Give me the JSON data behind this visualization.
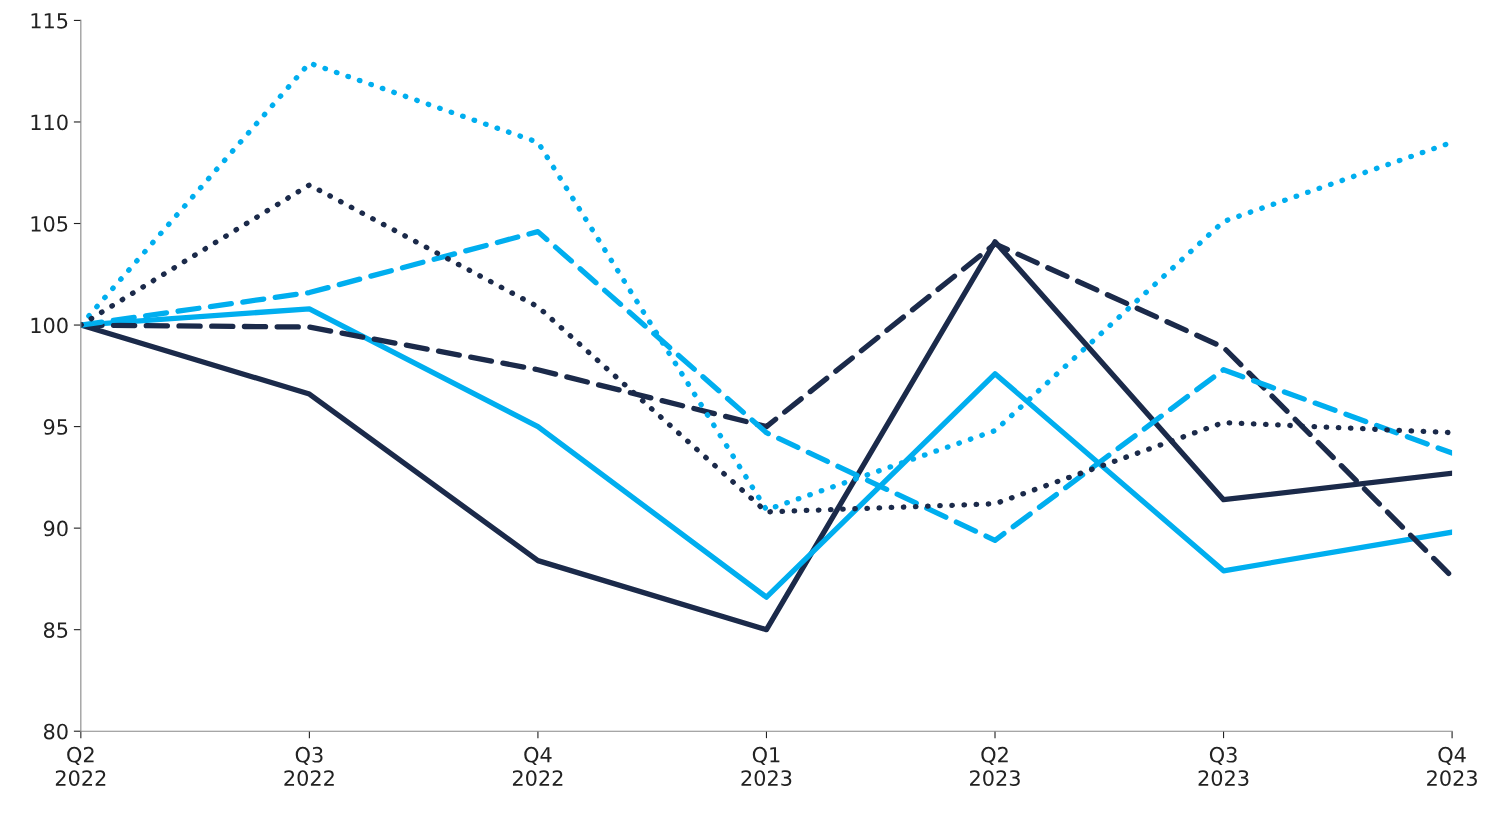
{
  "chart_data": {
    "type": "line",
    "categories": [
      "Q2\n2022",
      "Q3\n2022",
      "Q4\n2022",
      "Q1\n2023",
      "Q2\n2023",
      "Q3\n2023",
      "Q4\n2023"
    ],
    "ylim": [
      80,
      115
    ],
    "yticks": [
      80,
      85,
      90,
      95,
      100,
      105,
      110,
      115
    ],
    "grid": false,
    "legend": false,
    "marker": "none",
    "series": [
      {
        "color": "#1b2a4a",
        "line_style": "solid",
        "values": [
          100,
          96.6,
          88.4,
          85.0,
          104.1,
          91.4,
          92.7
        ]
      },
      {
        "color": "#00aeef",
        "line_style": "solid",
        "values": [
          100,
          100.8,
          95.0,
          86.6,
          97.6,
          87.9,
          89.8
        ]
      },
      {
        "color": "#1b2a4a",
        "line_style": "dashed",
        "values": [
          100,
          99.9,
          97.8,
          95.0,
          104.0,
          98.9,
          87.6
        ]
      },
      {
        "color": "#00aeef",
        "line_style": "dashed",
        "values": [
          100,
          101.6,
          104.6,
          94.7,
          89.4,
          97.8,
          93.7
        ]
      },
      {
        "color": "#00aeef",
        "line_style": "dotted",
        "values": [
          100,
          112.9,
          109.0,
          90.9,
          94.8,
          105.1,
          109.0
        ]
      },
      {
        "color": "#1b2a4a",
        "line_style": "dotted",
        "values": [
          100,
          106.9,
          100.9,
          90.8,
          91.2,
          95.2,
          94.7
        ]
      }
    ]
  }
}
